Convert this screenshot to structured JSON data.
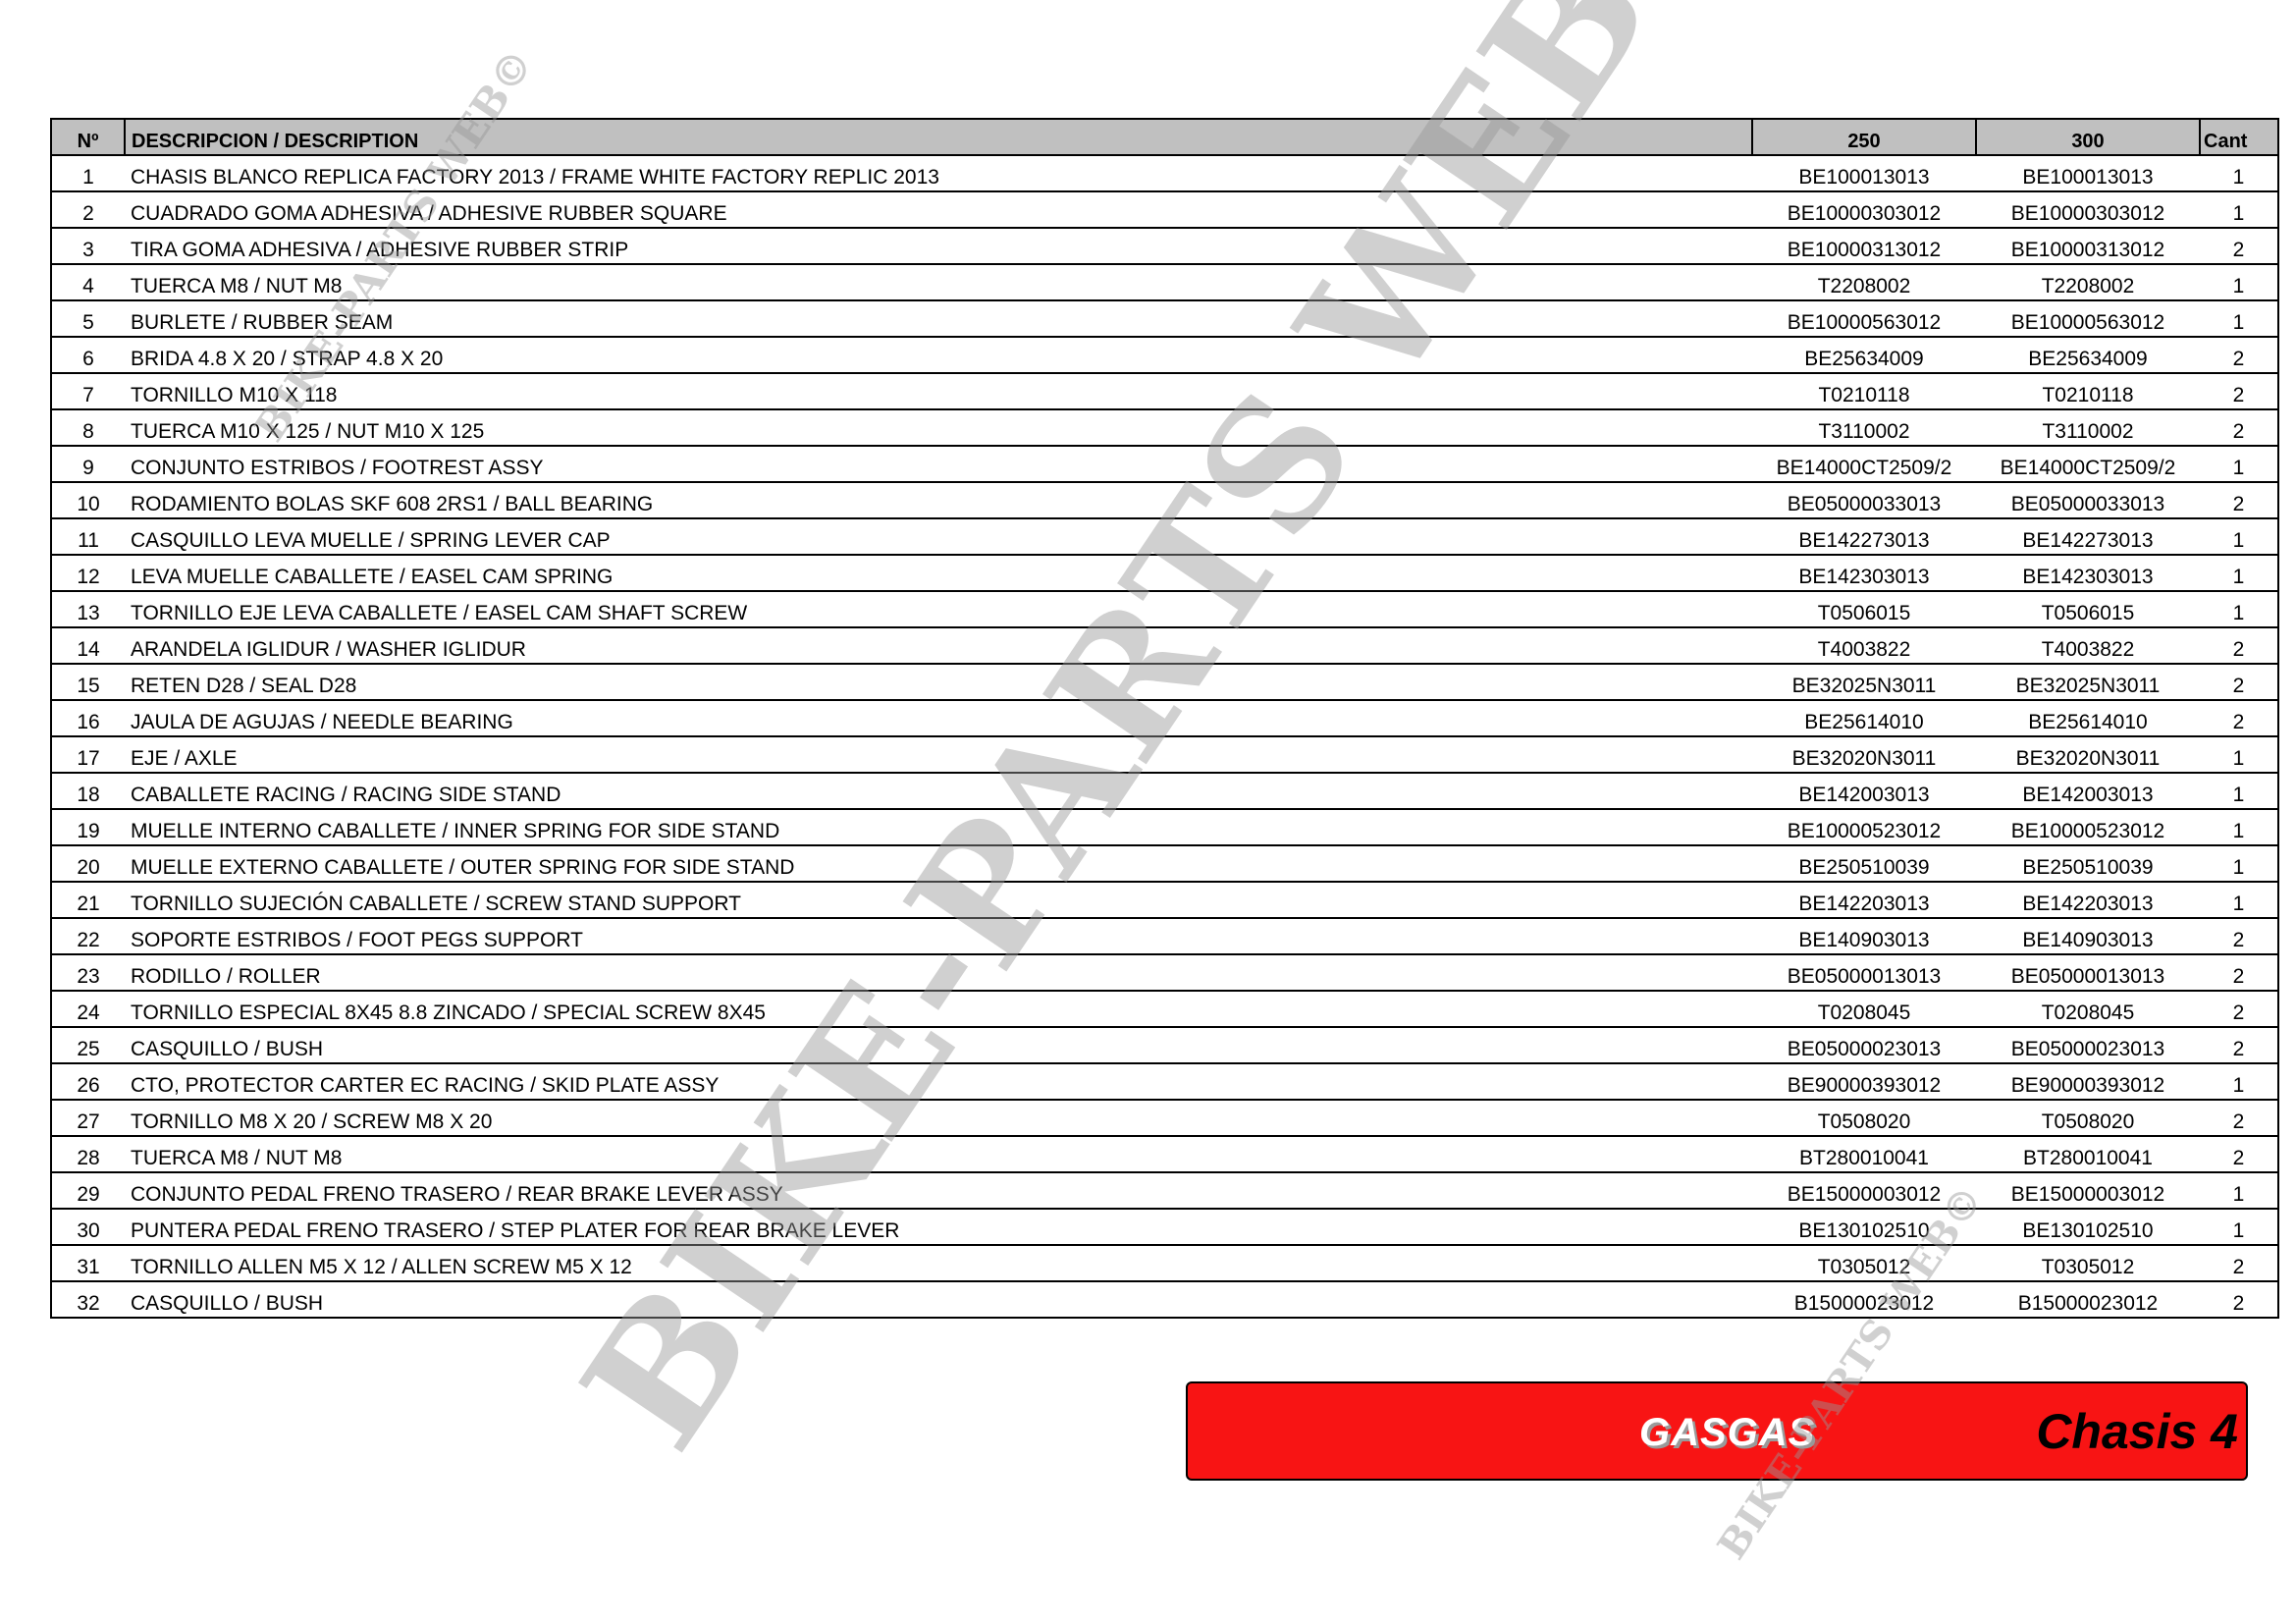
{
  "table": {
    "headers": {
      "no": "Nº",
      "description": "DESCRIPCION / DESCRIPTION",
      "col250": "250",
      "col300": "300",
      "qty": "Cant"
    },
    "rows": [
      {
        "no": "1",
        "desc": "CHASIS BLANCO REPLICA FACTORY 2013 / FRAME WHITE FACTORY REPLIC 2013",
        "p250": "BE100013013",
        "p300": "BE100013013",
        "qty": "1"
      },
      {
        "no": "2",
        "desc": "CUADRADO GOMA ADHESIVA / ADHESIVE RUBBER SQUARE",
        "p250": "BE10000303012",
        "p300": "BE10000303012",
        "qty": "1"
      },
      {
        "no": "3",
        "desc": "TIRA GOMA ADHESIVA / ADHESIVE RUBBER STRIP",
        "p250": "BE10000313012",
        "p300": "BE10000313012",
        "qty": "2"
      },
      {
        "no": "4",
        "desc": "TUERCA M8 / NUT M8",
        "p250": "T2208002",
        "p300": "T2208002",
        "qty": "1"
      },
      {
        "no": "5",
        "desc": "BURLETE / RUBBER SEAM",
        "p250": "BE10000563012",
        "p300": "BE10000563012",
        "qty": "1"
      },
      {
        "no": "6",
        "desc": "BRIDA 4.8 X 20 / STRAP 4.8 X 20",
        "p250": "BE25634009",
        "p300": "BE25634009",
        "qty": "2"
      },
      {
        "no": "7",
        "desc": "TORNILLO M10 X 118",
        "p250": "T0210118",
        "p300": "T0210118",
        "qty": "2"
      },
      {
        "no": "8",
        "desc": "TUERCA M10 X 125 / NUT M10 X 125",
        "p250": "T3110002",
        "p300": "T3110002",
        "qty": "2"
      },
      {
        "no": "9",
        "desc": "CONJUNTO ESTRIBOS / FOOTREST ASSY",
        "p250": "BE14000CT2509/2",
        "p300": "BE14000CT2509/2",
        "qty": "1"
      },
      {
        "no": "10",
        "desc": "RODAMIENTO BOLAS SKF 608 2RS1 / BALL BEARING",
        "p250": "BE05000033013",
        "p300": "BE05000033013",
        "qty": "2"
      },
      {
        "no": "11",
        "desc": "CASQUILLO LEVA MUELLE /  SPRING LEVER CAP",
        "p250": "BE142273013",
        "p300": "BE142273013",
        "qty": "1"
      },
      {
        "no": "12",
        "desc": "LEVA MUELLE CABALLETE / EASEL CAM SPRING",
        "p250": "BE142303013",
        "p300": "BE142303013",
        "qty": "1"
      },
      {
        "no": "13",
        "desc": "TORNILLO EJE LEVA CABALLETE / EASEL CAM SHAFT SCREW",
        "p250": "T0506015",
        "p300": "T0506015",
        "qty": "1"
      },
      {
        "no": "14",
        "desc": "ARANDELA IGLIDUR / WASHER IGLIDUR",
        "p250": "T4003822",
        "p300": "T4003822",
        "qty": "2"
      },
      {
        "no": "15",
        "desc": "RETEN D28 / SEAL D28",
        "p250": "BE32025N3011",
        "p300": "BE32025N3011",
        "qty": "2"
      },
      {
        "no": "16",
        "desc": "JAULA DE AGUJAS / NEEDLE BEARING",
        "p250": "BE25614010",
        "p300": "BE25614010",
        "qty": "2"
      },
      {
        "no": "17",
        "desc": "EJE / AXLE",
        "p250": "BE32020N3011",
        "p300": "BE32020N3011",
        "qty": "1"
      },
      {
        "no": "18",
        "desc": "CABALLETE RACING  / RACING SIDE STAND",
        "p250": "BE142003013",
        "p300": "BE142003013",
        "qty": "1"
      },
      {
        "no": "19",
        "desc": "MUELLE INTERNO CABALLETE / INNER SPRING FOR SIDE STAND",
        "p250": "BE10000523012",
        "p300": "BE10000523012",
        "qty": "1"
      },
      {
        "no": "20",
        "desc": "MUELLE EXTERNO CABALLETE / OUTER SPRING FOR SIDE STAND",
        "p250": "BE250510039",
        "p300": "BE250510039",
        "qty": "1"
      },
      {
        "no": "21",
        "desc": "TORNILLO SUJECIÓN CABALLETE / SCREW STAND SUPPORT",
        "p250": "BE142203013",
        "p300": "BE142203013",
        "qty": "1"
      },
      {
        "no": "22",
        "desc": "SOPORTE ESTRIBOS / FOOT PEGS SUPPORT",
        "p250": "BE140903013",
        "p300": "BE140903013",
        "qty": "2"
      },
      {
        "no": "23",
        "desc": "RODILLO / ROLLER",
        "p250": "BE05000013013",
        "p300": "BE05000013013",
        "qty": "2"
      },
      {
        "no": "24",
        "desc": "TORNILLO ESPECIAL 8X45 8.8 ZINCADO / SPECIAL SCREW 8X45",
        "p250": "T0208045",
        "p300": "T0208045",
        "qty": "2"
      },
      {
        "no": "25",
        "desc": "CASQUILLO / BUSH",
        "p250": "BE05000023013",
        "p300": "BE05000023013",
        "qty": "2"
      },
      {
        "no": "26",
        "desc": "CTO, PROTECTOR CARTER EC RACING / SKID PLATE ASSY",
        "p250": "BE90000393012",
        "p300": "BE90000393012",
        "qty": "1"
      },
      {
        "no": "27",
        "desc": "TORNILLO M8 X 20 / SCREW M8 X 20",
        "p250": "T0508020",
        "p300": "T0508020",
        "qty": "2"
      },
      {
        "no": "28",
        "desc": "TUERCA M8 / NUT M8",
        "p250": "BT280010041",
        "p300": "BT280010041",
        "qty": "2"
      },
      {
        "no": "29",
        "desc": "CONJUNTO PEDAL FRENO TRASERO / REAR BRAKE LEVER ASSY",
        "p250": "BE15000003012",
        "p300": "BE15000003012",
        "qty": "1"
      },
      {
        "no": "30",
        "desc": "PUNTERA PEDAL FRENO TRASERO / STEP PLATER FOR REAR BRAKE LEVER",
        "p250": "BE130102510",
        "p300": "BE130102510",
        "qty": "1"
      },
      {
        "no": "31",
        "desc": "TORNILLO ALLEN M5 X 12 / ALLEN SCREW M5 X 12",
        "p250": "T0305012",
        "p300": "T0305012",
        "qty": "2"
      },
      {
        "no": "32",
        "desc": "CASQUILLO / BUSH",
        "p250": "B15000023012",
        "p300": "B15000023012",
        "qty": "2"
      }
    ]
  },
  "banner": {
    "brand": "GASGAS",
    "title": "Chasis 4",
    "background_color": "#f81414"
  },
  "watermark": {
    "text": "BIKE-PARTS WEB©"
  }
}
